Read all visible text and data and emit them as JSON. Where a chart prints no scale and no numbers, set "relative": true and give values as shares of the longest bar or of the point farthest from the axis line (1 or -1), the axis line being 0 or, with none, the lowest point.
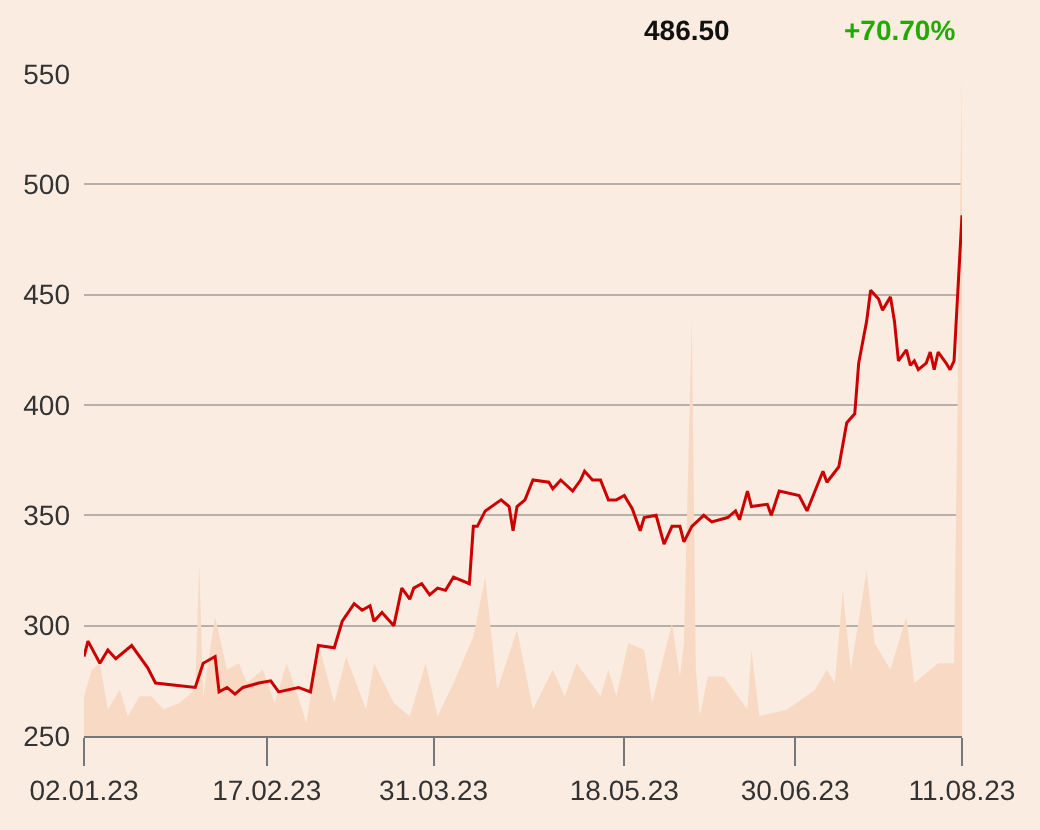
{
  "chart_data": [
    {
      "type": "line",
      "annotations": [
        "486.50",
        "+70.70%"
      ],
      "x": [
        "2023-01-02",
        "2023-01-03",
        "2023-01-06",
        "2023-01-08",
        "2023-01-10",
        "2023-01-14",
        "2023-01-18",
        "2023-01-20",
        "2023-01-25",
        "2023-01-30",
        "2023-02-01",
        "2023-02-04",
        "2023-02-05",
        "2023-02-07",
        "2023-02-09",
        "2023-02-11",
        "2023-02-15",
        "2023-02-18",
        "2023-02-20",
        "2023-02-25",
        "2023-02-28",
        "2023-03-02",
        "2023-03-06",
        "2023-03-08",
        "2023-03-11",
        "2023-03-13",
        "2023-03-15",
        "2023-03-16",
        "2023-03-18",
        "2023-03-21",
        "2023-03-23",
        "2023-03-25",
        "2023-03-26",
        "2023-03-28",
        "2023-03-30",
        "2023-04-01",
        "2023-04-03",
        "2023-04-05",
        "2023-04-09",
        "2023-04-10",
        "2023-04-11",
        "2023-04-13",
        "2023-04-17",
        "2023-04-19",
        "2023-04-20",
        "2023-04-21",
        "2023-04-23",
        "2023-04-25",
        "2023-04-29",
        "2023-04-30",
        "2023-05-02",
        "2023-05-05",
        "2023-05-07",
        "2023-05-08",
        "2023-05-10",
        "2023-05-12",
        "2023-05-14",
        "2023-05-16",
        "2023-05-18",
        "2023-05-20",
        "2023-05-22",
        "2023-05-23",
        "2023-05-26",
        "2023-05-28",
        "2023-05-30",
        "2023-06-01",
        "2023-06-02",
        "2023-06-04",
        "2023-06-07",
        "2023-06-09",
        "2023-06-13",
        "2023-06-15",
        "2023-06-16",
        "2023-06-18",
        "2023-06-19",
        "2023-06-23",
        "2023-06-24",
        "2023-06-26",
        "2023-07-01",
        "2023-07-03",
        "2023-07-05",
        "2023-07-07",
        "2023-07-08",
        "2023-07-11",
        "2023-07-13",
        "2023-07-15",
        "2023-07-16",
        "2023-07-18",
        "2023-07-19",
        "2023-07-21",
        "2023-07-22",
        "2023-07-24",
        "2023-07-25",
        "2023-07-26",
        "2023-07-28",
        "2023-07-29",
        "2023-07-30",
        "2023-07-31",
        "2023-08-02",
        "2023-08-03",
        "2023-08-04",
        "2023-08-05",
        "2023-08-07",
        "2023-08-08",
        "2023-08-09",
        "2023-08-11"
      ],
      "series": [
        {
          "color": "#cc0000",
          "values": [
            286,
            293,
            283,
            289,
            285,
            291,
            281,
            274,
            273,
            272,
            283,
            286,
            270,
            272,
            269,
            272,
            274,
            275,
            270,
            272,
            270,
            291,
            290,
            302,
            310,
            307,
            309,
            302,
            306,
            300,
            317,
            312,
            317,
            319,
            314,
            317,
            316,
            322,
            319,
            345,
            345,
            352,
            357,
            354,
            343,
            354,
            357,
            366,
            365,
            362,
            366,
            361,
            366,
            370,
            366,
            366,
            357,
            357,
            359,
            353,
            343,
            349,
            350,
            337,
            345,
            345,
            338,
            345,
            350,
            347,
            349,
            352,
            348,
            361,
            354,
            355,
            350,
            361,
            359,
            352,
            361,
            370,
            365,
            372,
            392,
            396,
            419,
            438,
            452,
            448,
            443,
            449,
            438,
            420,
            425,
            418,
            420,
            416,
            419,
            424,
            416,
            424,
            419,
            416,
            420,
            486
          ]
        }
      ],
      "xlim": [
        "2023-01-02",
        "2023-08-11"
      ],
      "xticks": [
        {
          "value": "2023-01-02",
          "label": "02.01.23"
        },
        {
          "value": "2023-02-17",
          "label": "17.02.23"
        },
        {
          "value": "2023-03-31",
          "label": "31.03.23"
        },
        {
          "value": "2023-05-18",
          "label": "18.05.23"
        },
        {
          "value": "2023-06-30",
          "label": "30.06.23"
        },
        {
          "value": "2023-08-11",
          "label": "11.08.23"
        }
      ],
      "ylim": [
        250,
        550
      ],
      "yticks": [
        250,
        300,
        350,
        400,
        450,
        500,
        550
      ],
      "grid": "y",
      "legend": false,
      "marker": "none",
      "line_style": "solid"
    },
    {
      "type": "area",
      "relative": true,
      "xlim": [
        "2023-01-02",
        "2023-08-11"
      ],
      "x": [
        "2023-01-02",
        "2023-01-04",
        "2023-01-06",
        "2023-01-08",
        "2023-01-11",
        "2023-01-13",
        "2023-01-16",
        "2023-01-19",
        "2023-01-22",
        "2023-01-26",
        "2023-01-30",
        "2023-01-31",
        "2023-02-01",
        "2023-02-04",
        "2023-02-07",
        "2023-02-10",
        "2023-02-12",
        "2023-02-16",
        "2023-02-19",
        "2023-02-22",
        "2023-02-27",
        "2023-03-02",
        "2023-03-06",
        "2023-03-09",
        "2023-03-14",
        "2023-03-16",
        "2023-03-21",
        "2023-03-25",
        "2023-03-29",
        "2023-04-01",
        "2023-04-05",
        "2023-04-10",
        "2023-04-13",
        "2023-04-16",
        "2023-04-21",
        "2023-04-25",
        "2023-04-30",
        "2023-05-03",
        "2023-05-06",
        "2023-05-12",
        "2023-05-14",
        "2023-05-16",
        "2023-05-19",
        "2023-05-23",
        "2023-05-25",
        "2023-05-30",
        "2023-06-01",
        "2023-06-02",
        "2023-06-04",
        "2023-06-05",
        "2023-06-06",
        "2023-06-08",
        "2023-06-12",
        "2023-06-18",
        "2023-06-19",
        "2023-06-21",
        "2023-06-28",
        "2023-07-05",
        "2023-07-08",
        "2023-07-10",
        "2023-07-12",
        "2023-07-14",
        "2023-07-18",
        "2023-07-20",
        "2023-07-24",
        "2023-07-28",
        "2023-07-30",
        "2023-08-05",
        "2023-08-09",
        "2023-08-11"
      ],
      "series": [
        {
          "color": "#f7d9c4",
          "values": [
            0.06,
            0.1,
            0.11,
            0.04,
            0.07,
            0.03,
            0.06,
            0.06,
            0.04,
            0.05,
            0.07,
            0.26,
            0.06,
            0.18,
            0.1,
            0.11,
            0.08,
            0.1,
            0.05,
            0.11,
            0.02,
            0.14,
            0.05,
            0.12,
            0.04,
            0.11,
            0.05,
            0.03,
            0.11,
            0.03,
            0.08,
            0.15,
            0.24,
            0.07,
            0.16,
            0.04,
            0.1,
            0.06,
            0.11,
            0.06,
            0.1,
            0.06,
            0.14,
            0.13,
            0.05,
            0.17,
            0.09,
            0.14,
            0.63,
            0.1,
            0.03,
            0.09,
            0.09,
            0.04,
            0.13,
            0.03,
            0.04,
            0.07,
            0.1,
            0.08,
            0.22,
            0.1,
            0.25,
            0.14,
            0.1,
            0.18,
            0.08,
            0.11,
            0.11,
            1
          ]
        }
      ],
      "legend": false,
      "grid": false
    }
  ]
}
